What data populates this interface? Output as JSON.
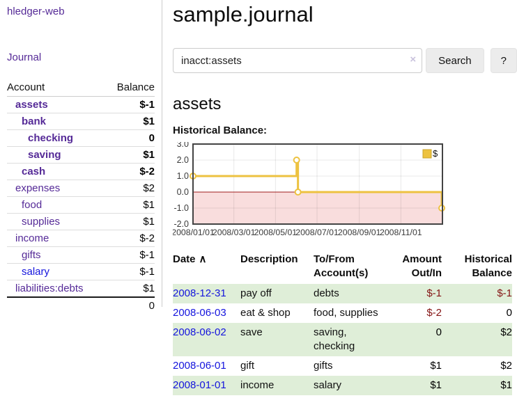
{
  "app": {
    "brand": "hledger-web"
  },
  "colors": {
    "link_purple": "#552a97",
    "link_blue": "#1414dd",
    "negative_strong": "#841414",
    "negative_muted": "#c26b6b",
    "stripe_green": "#dfeed8",
    "button_bg": "#ececec"
  },
  "sidebar": {
    "journal_link": "Journal",
    "accounts_table": {
      "col_account": "Account",
      "col_balance": "Balance",
      "rows": [
        {
          "name": "assets",
          "indent": 1,
          "bold": true,
          "balance": "$-1",
          "tone": "neg-strong",
          "link": "purple"
        },
        {
          "name": "bank",
          "indent": 2,
          "bold": true,
          "balance": "$1",
          "tone": "",
          "link": "purple"
        },
        {
          "name": "checking",
          "indent": 3,
          "bold": true,
          "balance": "0",
          "tone": "",
          "link": "purple"
        },
        {
          "name": "saving",
          "indent": 3,
          "bold": true,
          "balance": "$1",
          "tone": "",
          "link": "purple"
        },
        {
          "name": "cash",
          "indent": 2,
          "bold": true,
          "balance": "$-2",
          "tone": "neg-strong",
          "link": "purple"
        },
        {
          "name": "expenses",
          "indent": 1,
          "bold": false,
          "balance": "$2",
          "tone": "",
          "link": "purple"
        },
        {
          "name": "food",
          "indent": 2,
          "bold": false,
          "balance": "$1",
          "tone": "",
          "link": "purple"
        },
        {
          "name": "supplies",
          "indent": 2,
          "bold": false,
          "balance": "$1",
          "tone": "",
          "link": "purple"
        },
        {
          "name": "income",
          "indent": 1,
          "bold": false,
          "balance": "$-2",
          "tone": "neg-muted",
          "link": "purple"
        },
        {
          "name": "gifts",
          "indent": 2,
          "bold": false,
          "balance": "$-1",
          "tone": "neg-muted",
          "link": "purple"
        },
        {
          "name": "salary",
          "indent": 2,
          "bold": false,
          "balance": "$-1",
          "tone": "neg-muted",
          "link": "blue"
        },
        {
          "name": "liabilities:debts",
          "indent": 1,
          "bold": false,
          "balance": "$1",
          "tone": "",
          "link": "purple"
        }
      ],
      "total": "0"
    }
  },
  "main": {
    "title": "sample.journal",
    "search": {
      "value": "inacct:assets",
      "clear_icon": "×",
      "button": "Search",
      "help_button": "?"
    },
    "account_heading": "assets",
    "chart_label": "Historical Balance:"
  },
  "chart_data": {
    "type": "line",
    "title": "Historical Balance",
    "step": true,
    "series": [
      {
        "name": "$",
        "color": "#edc240",
        "points": [
          {
            "date": "2008-01-01",
            "value": 1
          },
          {
            "date": "2008-06-01",
            "value": 2
          },
          {
            "date": "2008-06-03",
            "value": 0
          },
          {
            "date": "2008-12-31",
            "value": -1
          }
        ]
      }
    ],
    "xlim": [
      "2008-01-01",
      "2009-01-01"
    ],
    "ylim": [
      -2,
      3
    ],
    "yticks": [
      "3.0",
      "2.0",
      "1.0",
      "0.0",
      "-1.0",
      "-2.0"
    ],
    "xticks": [
      {
        "label": "2008/01/01",
        "date": "2008-01-01"
      },
      {
        "label": "2008/03/01",
        "date": "2008-03-01"
      },
      {
        "label": "2008/05/01",
        "date": "2008-05-01"
      },
      {
        "label": "2008/07/01",
        "date": "2008-07-01"
      },
      {
        "label": "2008/09/01",
        "date": "2008-09-01"
      },
      {
        "label": "2008/11/01",
        "date": "2008-11-01"
      }
    ],
    "grid": true,
    "legend": {
      "label": "$",
      "position": "top-right"
    },
    "negative_region_fill": "#f9dddd",
    "zero_line_color": "#9e1b1b",
    "border_color": "#434343",
    "grid_color": "#e4e4e4"
  },
  "transactions": {
    "sort_icon": "∧",
    "columns": [
      {
        "label": "Date",
        "align": "left",
        "sortable": true
      },
      {
        "label": "Description",
        "align": "left"
      },
      {
        "label": "To/From Account(s)",
        "align": "left"
      },
      {
        "label": "Amount Out/In",
        "align": "right"
      },
      {
        "label": "Historical Balance",
        "align": "right"
      }
    ],
    "rows": [
      {
        "date": "2008-12-31",
        "description": "pay off",
        "accounts": "debts",
        "amount": "$-1",
        "balance": "$-1"
      },
      {
        "date": "2008-06-03",
        "description": "eat & shop",
        "accounts": "food, supplies",
        "amount": "$-2",
        "balance": "0"
      },
      {
        "date": "2008-06-02",
        "description": "save",
        "accounts": "saving, checking",
        "amount": "0",
        "balance": "$2"
      },
      {
        "date": "2008-06-01",
        "description": "gift",
        "accounts": "gifts",
        "amount": "$1",
        "balance": "$2"
      },
      {
        "date": "2008-01-01",
        "description": "income",
        "accounts": "salary",
        "amount": "$1",
        "balance": "$1"
      }
    ]
  }
}
